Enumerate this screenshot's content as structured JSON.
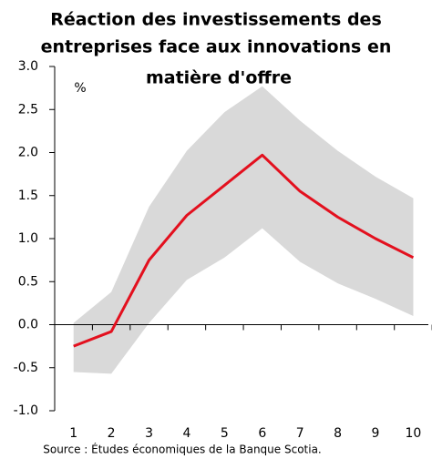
{
  "chart_data": {
    "type": "line",
    "title": [
      "Réaction des investissements des",
      "entreprises face aux innovations en",
      "matière d'offre"
    ],
    "y_unit": "%",
    "source": "Source : Études économiques de la Banque Scotia.",
    "x": [
      1,
      2,
      3,
      4,
      5,
      6,
      7,
      8,
      9,
      10
    ],
    "xlim": [
      0.5,
      10.4
    ],
    "xticks": [
      1,
      2,
      3,
      4,
      5,
      6,
      7,
      8,
      9,
      10
    ],
    "line": {
      "color": "#e3101e",
      "values": [
        -0.25,
        -0.08,
        0.75,
        1.27,
        1.62,
        1.97,
        1.55,
        1.25,
        1.0,
        0.78
      ]
    },
    "band": {
      "color": "#d9d9d9",
      "upper": [
        0.02,
        0.38,
        1.37,
        2.02,
        2.47,
        2.77,
        2.37,
        2.02,
        1.72,
        1.47
      ],
      "lower": [
        -0.55,
        -0.57,
        0.02,
        0.52,
        0.78,
        1.12,
        0.73,
        0.48,
        0.3,
        0.1
      ]
    },
    "ylim": [
      -1,
      3
    ],
    "yticks": [
      {
        "value": 3,
        "label": "3.0"
      },
      2.5,
      {
        "value": 2,
        "label": "2.0"
      },
      1.5,
      {
        "value": 1,
        "label": "1.0"
      },
      0.5,
      {
        "value": 0,
        "label": "0.0"
      },
      -0.5,
      {
        "value": -1,
        "label": "-1.0"
      }
    ]
  }
}
